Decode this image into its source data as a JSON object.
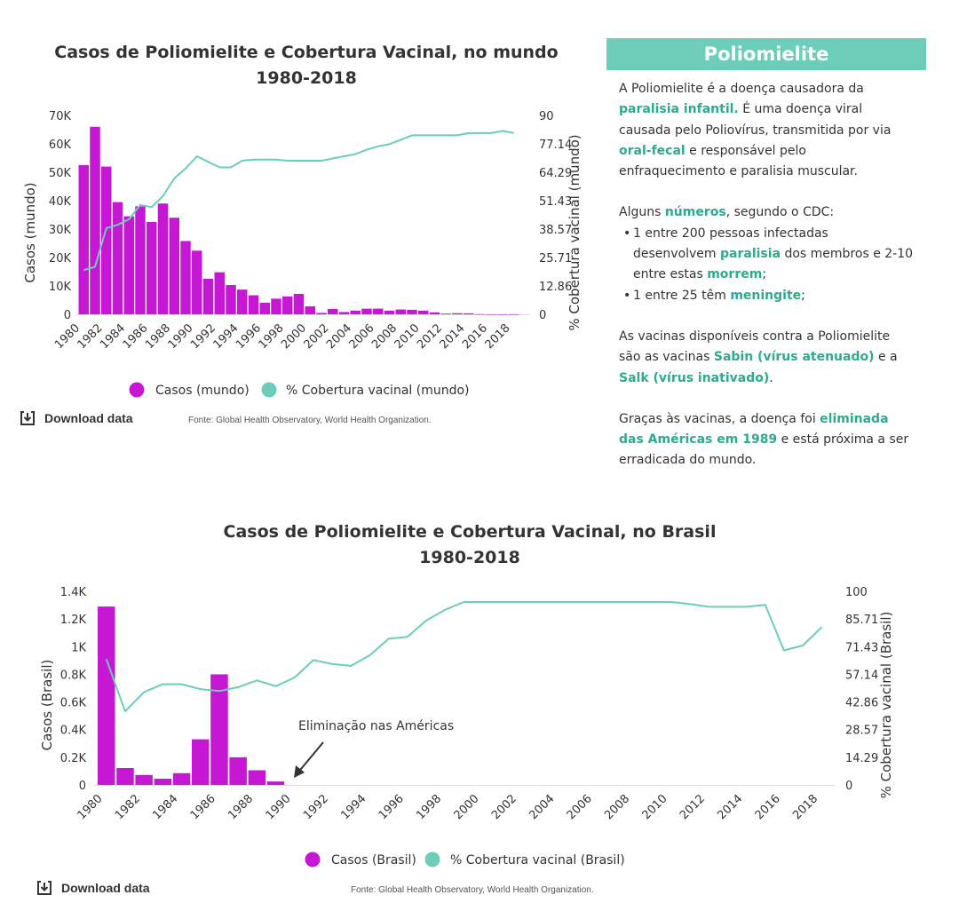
{
  "colors": {
    "cases": "#c617d4",
    "coverage": "#6ccdb9",
    "accent_text": "#2eaa8e"
  },
  "download_label": "Download data",
  "download_icon": "download-icon",
  "chart_data": [
    {
      "type": "bar",
      "title_line1": "Casos de Poliomielite e Cobertura Vacinal, no mundo",
      "title_line2": "1980-2018",
      "ylabel": "Casos (mundo)",
      "y2label": "% Cobertura vacinal (mundo)",
      "ylim": [
        0,
        70000
      ],
      "y2lim": [
        0,
        90
      ],
      "yticks": [
        "0",
        "10K",
        "20K",
        "30K",
        "40K",
        "50K",
        "60K",
        "70K"
      ],
      "y2ticks": [
        "0",
        "12.86",
        "25.71",
        "38.57",
        "51.43",
        "64.29",
        "77.14",
        "90"
      ],
      "xticks": [
        "1980",
        "1982",
        "1984",
        "1986",
        "1988",
        "1990",
        "1992",
        "1994",
        "1996",
        "1998",
        "2000",
        "2002",
        "2004",
        "2006",
        "2008",
        "2010",
        "2012",
        "2014",
        "2016",
        "2018"
      ],
      "years": [
        1980,
        1981,
        1982,
        1983,
        1984,
        1985,
        1986,
        1987,
        1988,
        1989,
        1990,
        1991,
        1992,
        1993,
        1994,
        1995,
        1996,
        1997,
        1998,
        1999,
        2000,
        2001,
        2002,
        2003,
        2004,
        2005,
        2006,
        2007,
        2008,
        2009,
        2010,
        2011,
        2012,
        2013,
        2014,
        2015,
        2016,
        2017,
        2018
      ],
      "series": [
        {
          "name": "Casos (mundo)",
          "kind": "bar",
          "values": [
            52500,
            66000,
            52000,
            39500,
            34500,
            38000,
            32500,
            39000,
            34000,
            25800,
            22400,
            12500,
            14800,
            10300,
            8700,
            6700,
            4100,
            5500,
            6300,
            7200,
            2800,
            500,
            1900,
            800,
            1300,
            2000,
            2000,
            1300,
            1700,
            1600,
            1300,
            700,
            250,
            400,
            360,
            74,
            37,
            22,
            33
          ]
        },
        {
          "name": "% Cobertura vacinal (mundo)",
          "kind": "line",
          "values": [
            20,
            21.5,
            39,
            40.5,
            43,
            49.5,
            48.5,
            53.5,
            61.5,
            66,
            71.5,
            69,
            66.5,
            66.5,
            69.5,
            70,
            70,
            70,
            69.5,
            69.5,
            69.5,
            69.5,
            70.5,
            71.5,
            72.5,
            74.5,
            76,
            77,
            79,
            81,
            81,
            81,
            81,
            81,
            82,
            82,
            82,
            83,
            82
          ]
        }
      ],
      "legend_placement": "bottom",
      "source": "Fonte: Global Health Observatory, World Health Organization."
    },
    {
      "type": "bar",
      "title_line1": "Casos de Poliomielite e Cobertura Vacinal, no Brasil",
      "title_line2": "1980-2018",
      "ylabel": "Casos (Brasil)",
      "y2label": "% Cobertura vacinal (Brasil)",
      "ylim": [
        0,
        1400
      ],
      "y2lim": [
        0,
        100
      ],
      "yticks": [
        "0",
        "0.2K",
        "0.4K",
        "0.6K",
        "0.8K",
        "1K",
        "1.2K",
        "1.4K"
      ],
      "y2ticks": [
        "0",
        "14.29",
        "28.57",
        "42.86",
        "57.14",
        "71.43",
        "85.71",
        "100"
      ],
      "xticks": [
        "1980",
        "1982",
        "1984",
        "1986",
        "1988",
        "1990",
        "1992",
        "1994",
        "1996",
        "1998",
        "2000",
        "2002",
        "2004",
        "2006",
        "2008",
        "2010",
        "2012",
        "2014",
        "2016",
        "2018"
      ],
      "years": [
        1980,
        1981,
        1982,
        1983,
        1984,
        1985,
        1986,
        1987,
        1988,
        1989,
        1990,
        1991,
        1992,
        1993,
        1994,
        1995,
        1996,
        1997,
        1998,
        1999,
        2000,
        2001,
        2002,
        2003,
        2004,
        2005,
        2006,
        2007,
        2008,
        2009,
        2010,
        2011,
        2012,
        2013,
        2014,
        2015,
        2016,
        2017,
        2018
      ],
      "series": [
        {
          "name": "Casos (Brasil)",
          "kind": "bar",
          "values": [
            1290,
            122,
            72,
            45,
            85,
            330,
            800,
            200,
            106,
            25,
            0,
            0,
            0,
            0,
            0,
            0,
            0,
            0,
            0,
            0,
            0,
            0,
            0,
            0,
            0,
            0,
            0,
            0,
            0,
            0,
            0,
            0,
            0,
            0,
            0,
            0,
            0,
            0,
            0
          ]
        },
        {
          "name": "% Cobertura vacinal (Brasil)",
          "kind": "line",
          "values": [
            65,
            38,
            48,
            52,
            52,
            49.5,
            48.5,
            50.5,
            54,
            51,
            55.5,
            64.5,
            62.5,
            61.5,
            67,
            75.5,
            76.5,
            85,
            90.5,
            94.5,
            94.5,
            94.5,
            94.5,
            94.5,
            94.5,
            94.5,
            94.5,
            94.5,
            94.5,
            94.5,
            94.5,
            93.5,
            92,
            92,
            92,
            93,
            69.5,
            72,
            81.5
          ]
        }
      ],
      "annotation": "Eliminação nas Américas",
      "legend_placement": "bottom",
      "source": "Fonte: Global Health Observatory, World Health Organization."
    }
  ],
  "info": {
    "title": "Poliomielite",
    "p1_a": "A Poliomielite é a doença causadora da ",
    "p1_b": "paralisia infantil.",
    "p1_c": " É uma doença viral causada pelo Poliovírus, transmitida por via ",
    "p1_d": "oral-fecal",
    "p1_e": " e responsável pelo enfraquecimento e paralisia muscular.",
    "p2_a": "Alguns ",
    "p2_b": "números",
    "p2_c": ", segundo o CDC:",
    "li1_a": "1 entre 200 pessoas infectadas desenvolvem ",
    "li1_b": "paralisia",
    "li1_c": " dos membros e 2-10 entre estas ",
    "li1_d": "morrem",
    "li1_e": ";",
    "li2_a": "1 entre 25 têm ",
    "li2_b": "meningite",
    "li2_c": ";",
    "p3_a": "As vacinas disponíveis contra a Poliomielite são as vacinas ",
    "p3_b": "Sabin (vírus atenuado)",
    "p3_c": " e a ",
    "p3_d": "Salk (vírus inativado)",
    "p3_e": ".",
    "p4_a": "Graças às vacinas, a doença foi ",
    "p4_b": "eliminada das Américas em 1989",
    "p4_c": " e está próxima a ser erradicada do mundo."
  }
}
